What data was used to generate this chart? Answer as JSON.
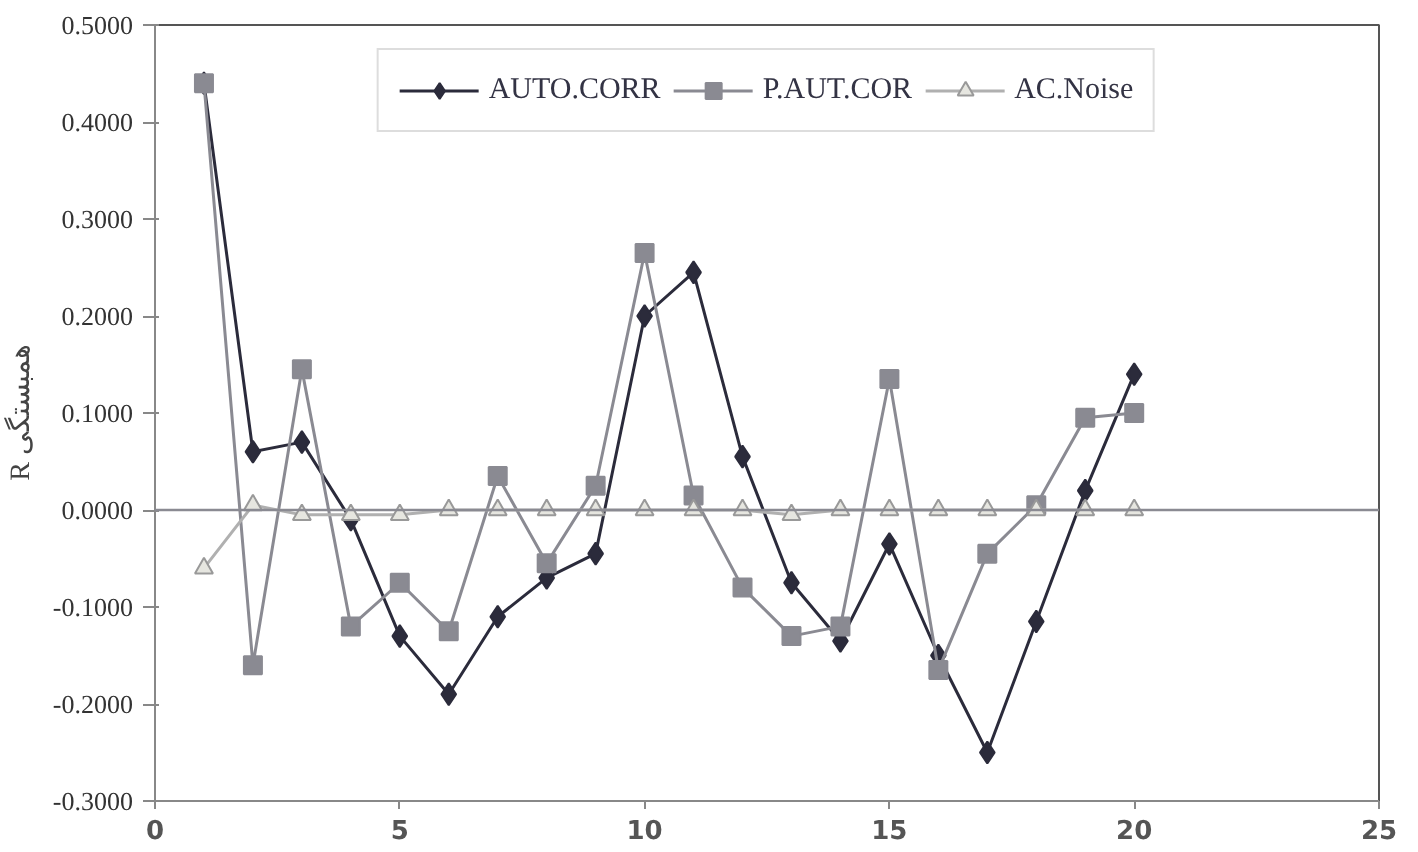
{
  "chart_data": {
    "type": "line",
    "ylabel": "R همبستگی",
    "x": [
      1,
      2,
      3,
      4,
      5,
      6,
      7,
      8,
      9,
      10,
      11,
      12,
      13,
      14,
      15,
      16,
      17,
      18,
      19,
      20
    ],
    "series": [
      {
        "name": "AUTO.CORR",
        "color": "#2b2b3b",
        "marker": "diamond",
        "values": [
          0.44,
          0.06,
          0.07,
          -0.01,
          -0.13,
          -0.19,
          -0.11,
          -0.07,
          -0.045,
          0.2,
          0.245,
          0.055,
          -0.075,
          -0.135,
          -0.035,
          -0.15,
          -0.25,
          -0.115,
          0.02,
          0.14
        ]
      },
      {
        "name": "P.AUT.COR",
        "color": "#8a8a92",
        "marker": "square",
        "values": [
          0.44,
          -0.16,
          0.145,
          -0.12,
          -0.075,
          -0.125,
          0.035,
          -0.055,
          0.025,
          0.265,
          0.015,
          -0.08,
          -0.13,
          -0.12,
          0.135,
          -0.165,
          -0.045,
          0.005,
          0.095,
          0.1
        ]
      },
      {
        "name": "AC.Noise",
        "color": "#b0b0b0",
        "marker": "triangle",
        "values": [
          -0.06,
          0.005,
          -0.005,
          -0.005,
          -0.005,
          0.0,
          0.0,
          0.0,
          0.0,
          0.0,
          0.0,
          0.0,
          -0.005,
          0.0,
          0.0,
          0.0,
          0.0,
          0.0,
          0.0,
          0.0
        ]
      }
    ],
    "xlim": [
      0,
      25
    ],
    "xticks": [
      0,
      5,
      10,
      15,
      20,
      25
    ],
    "ylim": [
      -0.3,
      0.5
    ],
    "yticks": [
      {
        "value": -0.3,
        "label": "-0.3000"
      },
      {
        "value": -0.2,
        "label": "-0.2000"
      },
      {
        "value": -0.1,
        "label": "-0.1000"
      },
      {
        "value": 0,
        "label": "0.0000"
      },
      {
        "value": 0.1,
        "label": "0.1000"
      },
      {
        "value": 0.2,
        "label": "0.2000"
      },
      {
        "value": 0.3,
        "label": "0.3000"
      },
      {
        "value": 0.4,
        "label": "0.4000"
      },
      {
        "value": 0.5,
        "label": "0.5000"
      }
    ],
    "ref_lines": [
      {
        "axis": "y",
        "value": 0,
        "color": "#8a8a92"
      }
    ],
    "grid": false,
    "legend": "top",
    "line_style": "solid"
  }
}
